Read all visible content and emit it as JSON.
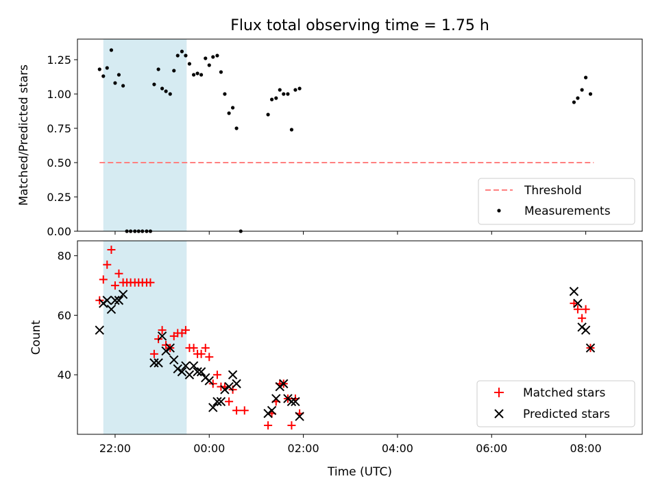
{
  "chart_data": [
    {
      "type": "scatter",
      "title": "Flux total observing time = 1.75 h",
      "ylabel": "Matched/Predicted stars",
      "ylim": [
        0,
        1.4
      ],
      "yticks": [
        0,
        0.25,
        0.5,
        0.75,
        1.0,
        1.25
      ],
      "ytick_labels": [
        "0.00",
        "0.25",
        "0.50",
        "0.75",
        "1.00",
        "1.25"
      ],
      "xlim_hours": [
        21.2,
        33.2
      ],
      "shaded_span_hours": [
        21.75,
        23.52
      ],
      "shaded_color": "#add8e6",
      "legend_position": "lower-right",
      "legend": [
        "Threshold",
        "Measurements"
      ],
      "threshold": {
        "name": "Threshold",
        "value": 0.5,
        "x_range_hours": [
          21.67,
          32.17
        ],
        "color": "#ff7f7f",
        "style": "dashed"
      },
      "series": [
        {
          "name": "Measurements",
          "color": "#000000",
          "marker": "dot",
          "points": [
            [
              21.67,
              1.18
            ],
            [
              21.75,
              1.13
            ],
            [
              21.83,
              1.19
            ],
            [
              21.92,
              1.32
            ],
            [
              22.0,
              1.08
            ],
            [
              22.08,
              1.14
            ],
            [
              22.17,
              1.06
            ],
            [
              22.25,
              0.0
            ],
            [
              22.33,
              0.0
            ],
            [
              22.42,
              0.0
            ],
            [
              22.5,
              0.0
            ],
            [
              22.58,
              0.0
            ],
            [
              22.67,
              0.0
            ],
            [
              22.75,
              0.0
            ],
            [
              22.83,
              1.07
            ],
            [
              22.92,
              1.18
            ],
            [
              23.0,
              1.04
            ],
            [
              23.08,
              1.02
            ],
            [
              23.17,
              1.0
            ],
            [
              23.25,
              1.17
            ],
            [
              23.33,
              1.28
            ],
            [
              23.42,
              1.31
            ],
            [
              23.5,
              1.28
            ],
            [
              23.58,
              1.22
            ],
            [
              23.67,
              1.14
            ],
            [
              23.75,
              1.15
            ],
            [
              23.83,
              1.14
            ],
            [
              23.92,
              1.26
            ],
            [
              24.0,
              1.21
            ],
            [
              24.08,
              1.27
            ],
            [
              24.17,
              1.28
            ],
            [
              24.25,
              1.16
            ],
            [
              24.33,
              1.0
            ],
            [
              24.42,
              0.86
            ],
            [
              24.5,
              0.9
            ],
            [
              24.58,
              0.75
            ],
            [
              24.67,
              0.0
            ],
            [
              25.25,
              0.85
            ],
            [
              25.33,
              0.96
            ],
            [
              25.42,
              0.97
            ],
            [
              25.5,
              1.03
            ],
            [
              25.58,
              1.0
            ],
            [
              25.67,
              1.0
            ],
            [
              25.75,
              0.74
            ],
            [
              25.83,
              1.03
            ],
            [
              25.92,
              1.04
            ],
            [
              31.75,
              0.94
            ],
            [
              31.83,
              0.97
            ],
            [
              31.92,
              1.03
            ],
            [
              32.0,
              1.12
            ],
            [
              32.1,
              1.0
            ]
          ]
        }
      ]
    },
    {
      "type": "scatter",
      "xlabel": "Time (UTC)",
      "ylabel": "Count",
      "ylim": [
        20,
        85
      ],
      "yticks": [
        40,
        60,
        80
      ],
      "ytick_labels": [
        "40",
        "60",
        "80"
      ],
      "xlim_hours": [
        21.2,
        33.2
      ],
      "xticks_hours": [
        22,
        24,
        26,
        28,
        30,
        32
      ],
      "xtick_labels": [
        "22:00",
        "00:00",
        "02:00",
        "04:00",
        "06:00",
        "08:00"
      ],
      "shaded_span_hours": [
        21.75,
        23.52
      ],
      "shaded_color": "#add8e6",
      "legend_position": "lower-right",
      "legend": [
        "Matched stars",
        "Predicted stars"
      ],
      "series": [
        {
          "name": "Matched stars",
          "color": "#ff0000",
          "marker": "plus",
          "points": [
            [
              21.67,
              65
            ],
            [
              21.75,
              72
            ],
            [
              21.83,
              77
            ],
            [
              21.92,
              82
            ],
            [
              22.0,
              70
            ],
            [
              22.08,
              74
            ],
            [
              22.17,
              71
            ],
            [
              22.25,
              71
            ],
            [
              22.33,
              71
            ],
            [
              22.42,
              71
            ],
            [
              22.5,
              71
            ],
            [
              22.58,
              71
            ],
            [
              22.67,
              71
            ],
            [
              22.75,
              71
            ],
            [
              22.83,
              47
            ],
            [
              22.92,
              52
            ],
            [
              23.0,
              55
            ],
            [
              23.08,
              50
            ],
            [
              23.17,
              49
            ],
            [
              23.25,
              53
            ],
            [
              23.33,
              54
            ],
            [
              23.42,
              54
            ],
            [
              23.5,
              55
            ],
            [
              23.58,
              49
            ],
            [
              23.67,
              49
            ],
            [
              23.75,
              47
            ],
            [
              23.83,
              47
            ],
            [
              23.92,
              49
            ],
            [
              24.0,
              46
            ],
            [
              24.08,
              37
            ],
            [
              24.17,
              40
            ],
            [
              24.25,
              36
            ],
            [
              24.33,
              36
            ],
            [
              24.42,
              31
            ],
            [
              24.5,
              35
            ],
            [
              24.58,
              28
            ],
            [
              24.75,
              28
            ],
            [
              25.25,
              23
            ],
            [
              25.33,
              27
            ],
            [
              25.42,
              31
            ],
            [
              25.5,
              37
            ],
            [
              25.58,
              37
            ],
            [
              25.67,
              32
            ],
            [
              25.75,
              23
            ],
            [
              25.83,
              32
            ],
            [
              25.92,
              27
            ],
            [
              31.75,
              64
            ],
            [
              31.83,
              62
            ],
            [
              31.92,
              59
            ],
            [
              32.0,
              62
            ],
            [
              32.1,
              49
            ]
          ]
        },
        {
          "name": "Predicted stars",
          "color": "#000000",
          "marker": "x",
          "points": [
            [
              21.67,
              55
            ],
            [
              21.75,
              64
            ],
            [
              21.83,
              65
            ],
            [
              21.92,
              62
            ],
            [
              22.0,
              65
            ],
            [
              22.08,
              65
            ],
            [
              22.17,
              67
            ],
            [
              22.83,
              44
            ],
            [
              22.92,
              44
            ],
            [
              23.0,
              53
            ],
            [
              23.08,
              48
            ],
            [
              23.17,
              49
            ],
            [
              23.25,
              45
            ],
            [
              23.33,
              42
            ],
            [
              23.42,
              41
            ],
            [
              23.5,
              43
            ],
            [
              23.58,
              40
            ],
            [
              23.67,
              43
            ],
            [
              23.75,
              41
            ],
            [
              23.83,
              41
            ],
            [
              23.92,
              39
            ],
            [
              24.0,
              38
            ],
            [
              24.08,
              29
            ],
            [
              24.17,
              31
            ],
            [
              24.25,
              31
            ],
            [
              24.33,
              35
            ],
            [
              24.42,
              36
            ],
            [
              24.5,
              40
            ],
            [
              24.58,
              37
            ],
            [
              25.25,
              27
            ],
            [
              25.33,
              28
            ],
            [
              25.42,
              32
            ],
            [
              25.5,
              36
            ],
            [
              25.58,
              37
            ],
            [
              25.67,
              32
            ],
            [
              25.75,
              31
            ],
            [
              25.83,
              31
            ],
            [
              25.92,
              26
            ],
            [
              31.75,
              68
            ],
            [
              31.83,
              64
            ],
            [
              31.92,
              56
            ],
            [
              32.0,
              55
            ],
            [
              32.1,
              49
            ]
          ]
        }
      ]
    }
  ]
}
